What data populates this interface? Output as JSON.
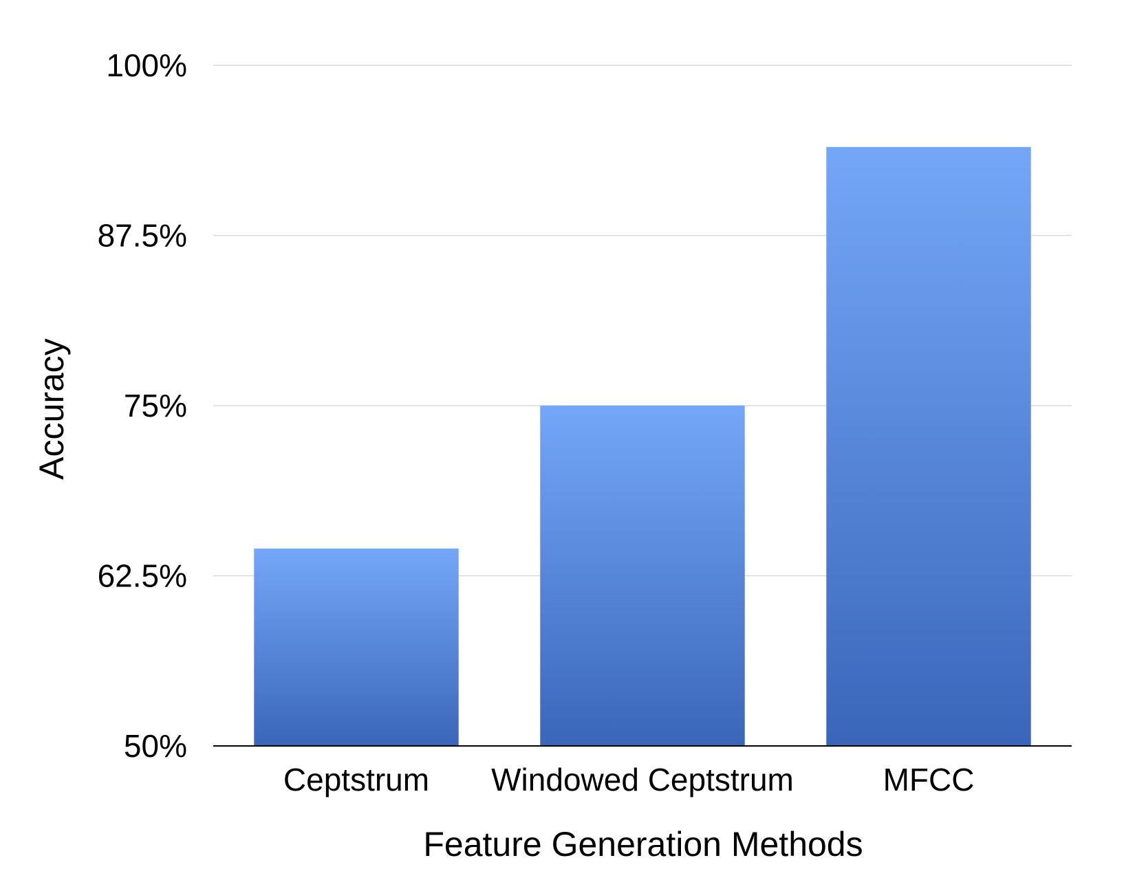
{
  "chart_data": {
    "type": "bar",
    "xlabel": "Feature Generation Methods",
    "ylabel": "Accuracy",
    "categories": [
      "Ceptstrum",
      "Windowed Ceptstrum",
      "MFCC"
    ],
    "values": [
      64.5,
      75.0,
      94.0
    ],
    "ylim": [
      50,
      100
    ],
    "yticks": [
      50,
      62.5,
      75,
      87.5,
      100
    ],
    "ytick_labels": [
      "50%",
      "62.5%",
      "75%",
      "87.5%",
      "100%"
    ],
    "grid": true,
    "legend": "none",
    "colors": {
      "bar_top": "#74a7f7",
      "bar_bottom": "#3a66ba",
      "gridline": "#d9d9d9",
      "axis": "#000000"
    }
  }
}
